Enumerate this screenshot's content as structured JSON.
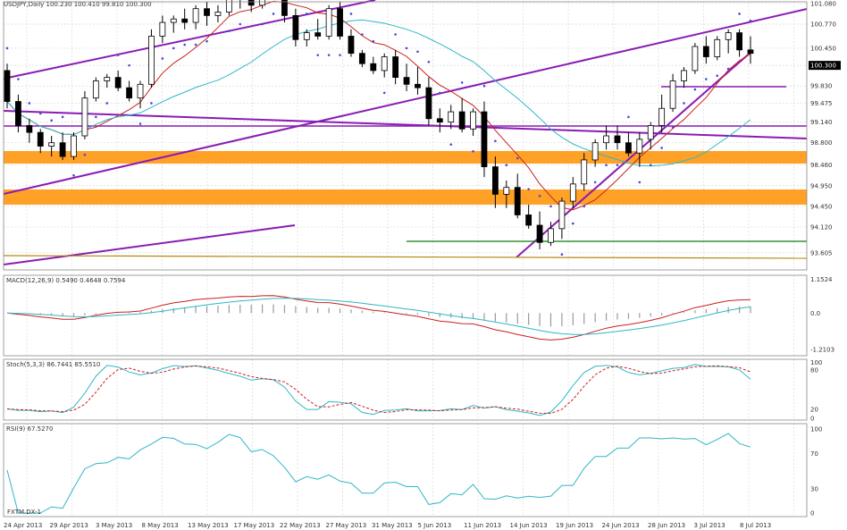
{
  "chart_data": {
    "type": "candlestick",
    "panes": {
      "price": {
        "ylim": [
          93.6,
          101.4
        ],
        "ticks": [
          {
            "v": 101.35,
            "label": "101.080"
          },
          {
            "v": 100.75,
            "label": "100.770"
          },
          {
            "v": 100.05,
            "label": "100.450"
          },
          {
            "v": 99.55,
            "label": "100.300"
          },
          {
            "v": 98.95,
            "label": "99.830"
          },
          {
            "v": 98.45,
            "label": "99.475"
          },
          {
            "v": 97.9,
            "label": "99.140"
          },
          {
            "v": 97.3,
            "label": "98.800"
          },
          {
            "v": 96.65,
            "label": "98.460"
          },
          {
            "v": 96.05,
            "label": "94.950"
          },
          {
            "v": 95.45,
            "label": "94.450"
          },
          {
            "v": 94.85,
            "label": "94.120"
          },
          {
            "v": 94.1,
            "label": "93.605"
          }
        ],
        "current_price_label": "100.300",
        "current_price_value": 99.55,
        "candles": [
          [
            99.4,
            99.6,
            98.3,
            98.5
          ],
          [
            98.5,
            98.7,
            97.6,
            97.8
          ],
          [
            97.8,
            98.0,
            97.3,
            97.6
          ],
          [
            97.6,
            97.7,
            97.0,
            97.2
          ],
          [
            97.2,
            97.5,
            96.9,
            97.3
          ],
          [
            97.3,
            97.6,
            96.8,
            96.9
          ],
          [
            96.9,
            97.6,
            96.8,
            97.5
          ],
          [
            97.5,
            98.8,
            97.4,
            98.6
          ],
          [
            98.6,
            99.2,
            98.5,
            99.1
          ],
          [
            99.1,
            99.3,
            98.9,
            99.2
          ],
          [
            99.2,
            99.4,
            98.8,
            98.9
          ],
          [
            98.9,
            99.1,
            98.5,
            98.6
          ],
          [
            98.6,
            99.1,
            98.3,
            99.0
          ],
          [
            99.0,
            100.6,
            98.9,
            100.4
          ],
          [
            100.4,
            101.0,
            100.2,
            100.8
          ],
          [
            100.8,
            101.0,
            100.5,
            100.9
          ],
          [
            100.9,
            101.2,
            100.6,
            100.8
          ],
          [
            100.8,
            101.3,
            100.6,
            101.2
          ],
          [
            101.2,
            101.4,
            100.7,
            101.0
          ],
          [
            101.0,
            101.3,
            100.8,
            101.1
          ],
          [
            101.1,
            101.9,
            101.0,
            101.6
          ],
          [
            101.6,
            101.9,
            101.2,
            101.5
          ],
          [
            101.5,
            101.8,
            101.1,
            101.3
          ],
          [
            101.3,
            102.1,
            101.2,
            101.9
          ],
          [
            101.9,
            102.2,
            101.5,
            101.7
          ],
          [
            101.7,
            102.1,
            100.8,
            101.0
          ],
          [
            101.0,
            101.2,
            100.1,
            100.3
          ],
          [
            100.3,
            100.6,
            100.1,
            100.5
          ],
          [
            100.5,
            100.9,
            100.3,
            100.4
          ],
          [
            100.4,
            101.3,
            100.3,
            101.2
          ],
          [
            101.2,
            101.4,
            100.3,
            100.4
          ],
          [
            100.4,
            100.6,
            99.8,
            99.9
          ],
          [
            99.9,
            100.0,
            99.5,
            99.6
          ],
          [
            99.6,
            99.8,
            99.3,
            99.4
          ],
          [
            99.4,
            99.9,
            99.2,
            99.8
          ],
          [
            99.8,
            100.0,
            99.0,
            99.2
          ],
          [
            99.2,
            99.6,
            98.8,
            99.0
          ],
          [
            99.0,
            99.5,
            98.7,
            98.9
          ],
          [
            98.9,
            99.2,
            97.8,
            98.0
          ],
          [
            98.0,
            98.3,
            97.6,
            97.9
          ],
          [
            97.9,
            98.4,
            97.7,
            98.2
          ],
          [
            98.2,
            98.6,
            97.6,
            97.7
          ],
          [
            97.7,
            98.3,
            97.5,
            98.2
          ],
          [
            98.2,
            98.5,
            96.3,
            96.6
          ],
          [
            96.6,
            96.9,
            95.4,
            95.8
          ],
          [
            95.8,
            96.2,
            95.4,
            96.0
          ],
          [
            96.0,
            96.4,
            95.1,
            95.2
          ],
          [
            95.2,
            95.5,
            94.8,
            94.9
          ],
          [
            94.9,
            95.3,
            94.2,
            94.4
          ],
          [
            94.4,
            95.0,
            94.3,
            94.8
          ],
          [
            94.8,
            95.7,
            94.5,
            95.6
          ],
          [
            95.6,
            96.3,
            95.4,
            96.1
          ],
          [
            96.1,
            97.0,
            95.9,
            96.8
          ],
          [
            96.8,
            97.4,
            96.6,
            97.3
          ],
          [
            97.3,
            97.8,
            97.1,
            97.5
          ],
          [
            97.5,
            97.8,
            97.1,
            97.3
          ],
          [
            97.3,
            97.6,
            96.9,
            97.0
          ],
          [
            97.0,
            97.6,
            96.6,
            97.4
          ],
          [
            97.4,
            97.9,
            97.1,
            97.8
          ],
          [
            97.8,
            98.7,
            97.6,
            98.3
          ],
          [
            98.3,
            99.3,
            98.2,
            99.1
          ],
          [
            99.1,
            99.5,
            98.9,
            99.4
          ],
          [
            99.4,
            100.2,
            99.3,
            100.1
          ],
          [
            100.1,
            100.4,
            99.6,
            99.8
          ],
          [
            99.8,
            100.4,
            99.7,
            100.3
          ],
          [
            100.3,
            100.6,
            99.9,
            100.5
          ],
          [
            100.5,
            100.6,
            99.8,
            100.0
          ],
          [
            100.0,
            100.4,
            99.6,
            99.9
          ]
        ]
      },
      "macd": {
        "label": "MACD(12,26,9) 0.5490 0.4648 0.7594",
        "ticks": [
          "1.1524",
          "0.0",
          "-1.2103"
        ]
      },
      "stoch": {
        "label": "Stoch(5,3,3) 86.7441 85.5510",
        "ticks": [
          "100",
          "80",
          "20",
          "0"
        ]
      },
      "rsi": {
        "label": "RSI(9) 67.5270",
        "ticks": [
          "100",
          "70",
          "30",
          "0"
        ]
      }
    },
    "x_labels": [
      "24 Apr 2013",
      "29 Apr 2013",
      "3 May 2013",
      "8 May 2013",
      "13 May 2013",
      "17 May 2013",
      "22 May 2013",
      "27 May 2013",
      "31 May 2013",
      "5 Jun 2013",
      "11 Jun 2013",
      "14 Jun 2013",
      "19 Jun 2013",
      "24 Jun 2013",
      "28 Jun 2013",
      "3 Jul 2013",
      "8 Jul 2013"
    ],
    "footer_label": "FXTM.DX-1"
  },
  "colors": {
    "bull": "#ffffff",
    "bear": "#000000",
    "zone": "#ff9c1a",
    "trend": "#8a1cb3",
    "support": "#0a7d0a",
    "ma_fast": "#c8201f",
    "ma_slow": "#2fb7c5",
    "psar": "#4a4ad2",
    "grid": "#d9d9d9"
  },
  "header_text": "USDJPY,Daily 100.230 100.410 99.810 100.300"
}
